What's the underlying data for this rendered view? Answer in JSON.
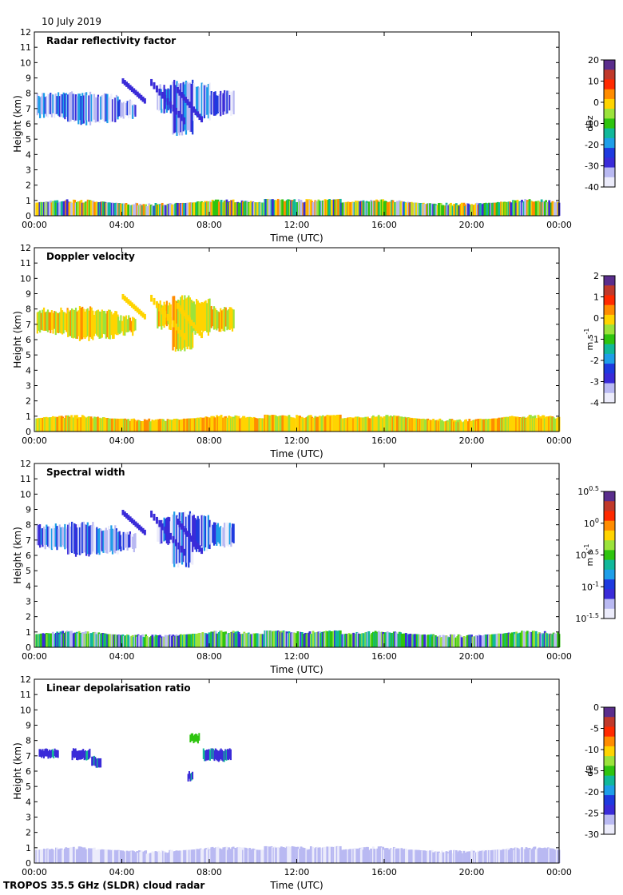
{
  "date_label": "10 July 2019",
  "footer_label": "TROPOS 35.5 GHz (SLDR) cloud radar",
  "chart_data": [
    {
      "type": "heatmap",
      "title": "Radar reflectivity factor",
      "xlabel": "Time (UTC)",
      "ylabel": "Height (km)",
      "x_ticks": [
        "00:00",
        "04:00",
        "08:00",
        "12:00",
        "16:00",
        "20:00",
        "00:00"
      ],
      "xlim_hours": [
        0,
        24
      ],
      "ylim": [
        0,
        12
      ],
      "y_ticks": [
        0,
        1,
        2,
        3,
        4,
        5,
        6,
        7,
        8,
        9,
        10,
        11,
        12
      ],
      "colorbar": {
        "unit": "dBz",
        "unit_sup": "",
        "ticks": [
          "20",
          "10",
          "0",
          "-10",
          "-20",
          "-30",
          "-40"
        ]
      },
      "upper_cloud": "blue",
      "boundary_layer": "mixed",
      "palette": [
        "#5a2d8c",
        "#c0392b",
        "#ff2a00",
        "#ff8c00",
        "#ffd400",
        "#9be33b",
        "#2ec40f",
        "#11b89a",
        "#1e9ee8",
        "#1e3adf",
        "#3a2bd8",
        "#b9b9f2",
        "#ececfb"
      ]
    },
    {
      "type": "heatmap",
      "title": "Doppler velocity",
      "xlabel": "Time (UTC)",
      "ylabel": "Height (km)",
      "x_ticks": [
        "00:00",
        "04:00",
        "08:00",
        "12:00",
        "16:00",
        "20:00",
        "00:00"
      ],
      "xlim_hours": [
        0,
        24
      ],
      "ylim": [
        0,
        12
      ],
      "y_ticks": [
        0,
        1,
        2,
        3,
        4,
        5,
        6,
        7,
        8,
        9,
        10,
        11,
        12
      ],
      "colorbar": {
        "unit": "m s",
        "unit_sup": "-1",
        "ticks": [
          "2",
          "1",
          "0",
          "-1",
          "-2",
          "-3",
          "-4"
        ]
      },
      "upper_cloud": "yellow",
      "boundary_layer": "yellow",
      "palette": [
        "#5a2d8c",
        "#c0392b",
        "#ff2a00",
        "#ff8c00",
        "#ffd400",
        "#9be33b",
        "#2ec40f",
        "#11b89a",
        "#1e9ee8",
        "#1e3adf",
        "#3a2bd8",
        "#b9b9f2",
        "#ececfb"
      ]
    },
    {
      "type": "heatmap",
      "title": "Spectral width",
      "xlabel": "Time (UTC)",
      "ylabel": "Height (km)",
      "x_ticks": [
        "00:00",
        "04:00",
        "08:00",
        "12:00",
        "16:00",
        "20:00",
        "00:00"
      ],
      "xlim_hours": [
        0,
        24
      ],
      "ylim": [
        0,
        12
      ],
      "y_ticks": [
        0,
        1,
        2,
        3,
        4,
        5,
        6,
        7,
        8,
        9,
        10,
        11,
        12
      ],
      "colorbar": {
        "unit": "m s",
        "unit_sup": "-1",
        "ticks": [
          "10^0.5",
          "10^0",
          "10^-0.5",
          "10^-1",
          "10^-1.5"
        ]
      },
      "upper_cloud": "blue",
      "boundary_layer": "green",
      "palette": [
        "#5a2d8c",
        "#c0392b",
        "#ff2a00",
        "#ff8c00",
        "#ffd400",
        "#9be33b",
        "#2ec40f",
        "#11b89a",
        "#1e9ee8",
        "#1e3adf",
        "#3a2bd8",
        "#b9b9f2",
        "#ececfb"
      ]
    },
    {
      "type": "heatmap",
      "title": "Linear depolarisation ratio",
      "xlabel": "Time (UTC)",
      "ylabel": "Height (km)",
      "x_ticks": [
        "00:00",
        "04:00",
        "08:00",
        "12:00",
        "16:00",
        "20:00",
        "00:00"
      ],
      "xlim_hours": [
        0,
        24
      ],
      "ylim": [
        0,
        12
      ],
      "y_ticks": [
        0,
        1,
        2,
        3,
        4,
        5,
        6,
        7,
        8,
        9,
        10,
        11,
        12
      ],
      "colorbar": {
        "unit": "dB",
        "unit_sup": "",
        "ticks": [
          "0",
          "-5",
          "-10",
          "-15",
          "-20",
          "-25",
          "-30"
        ]
      },
      "upper_cloud": "sparse",
      "boundary_layer": "pale",
      "palette": [
        "#5a2d8c",
        "#c0392b",
        "#ff2a00",
        "#ff8c00",
        "#ffd400",
        "#9be33b",
        "#2ec40f",
        "#11b89a",
        "#1e9ee8",
        "#1e3adf",
        "#3a2bd8",
        "#b9b9f2",
        "#ececfb"
      ]
    }
  ]
}
